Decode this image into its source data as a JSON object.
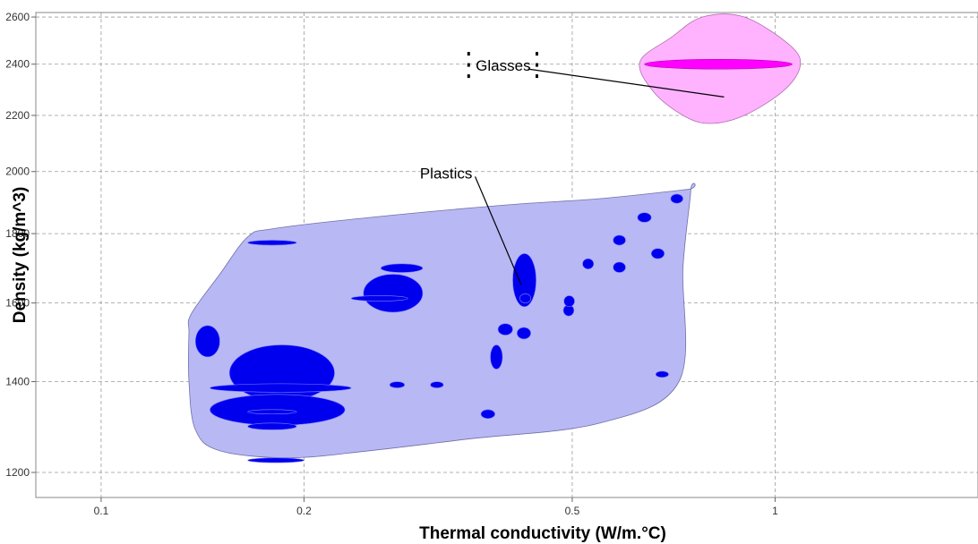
{
  "chart_data": {
    "type": "scatter",
    "xlabel": "Thermal conductivity (W/m.°C)",
    "ylabel": "Density (kg/m^3)",
    "x_scale": "log",
    "y_scale": "log",
    "xlim": [
      0.08,
      2.0
    ],
    "ylim": [
      1150,
      2620
    ],
    "x_ticks": [
      0.1,
      0.2,
      0.5,
      1
    ],
    "x_tick_labels": [
      "0.1",
      "0.2",
      "0.5",
      "1"
    ],
    "y_ticks": [
      1200,
      1400,
      1600,
      1800,
      2000,
      2200,
      2400,
      2600
    ],
    "y_tick_labels": [
      "1200",
      "1400",
      "1600",
      "1800",
      "2000",
      "2200",
      "2400",
      "2600"
    ],
    "grid": true,
    "colors": {
      "plastics_envelope": "#b8b8f5",
      "plastics_bubble": "#0000ee",
      "glasses_envelope": "#ffb3ff",
      "glasses_bubble": "#ff00ff"
    },
    "groups": [
      {
        "name": "Glasses",
        "label": "Glasses",
        "envelope": [
          [
            0.63,
            2410
          ],
          [
            0.7,
            2510
          ],
          [
            0.78,
            2600
          ],
          [
            0.9,
            2600
          ],
          [
            1.05,
            2480
          ],
          [
            1.09,
            2395
          ],
          [
            1.03,
            2295
          ],
          [
            0.9,
            2200
          ],
          [
            0.8,
            2170
          ],
          [
            0.73,
            2200
          ],
          [
            0.66,
            2290
          ]
        ],
        "materials": [
          {
            "k": [
              0.64,
              1.06
            ],
            "rho": [
              2380,
              2420
            ]
          }
        ]
      },
      {
        "name": "Plastics",
        "label": "Plastics",
        "envelope": [
          [
            0.136,
            1570
          ],
          [
            0.15,
            1680
          ],
          [
            0.165,
            1790
          ],
          [
            0.18,
            1815
          ],
          [
            0.25,
            1850
          ],
          [
            0.4,
            1890
          ],
          [
            0.55,
            1910
          ],
          [
            0.74,
            1940
          ],
          [
            0.75,
            1940
          ],
          [
            0.73,
            1700
          ],
          [
            0.72,
            1400
          ],
          [
            0.55,
            1305
          ],
          [
            0.35,
            1270
          ],
          [
            0.25,
            1245
          ],
          [
            0.19,
            1230
          ],
          [
            0.15,
            1245
          ],
          [
            0.138,
            1290
          ],
          [
            0.135,
            1400
          ],
          [
            0.135,
            1520
          ]
        ],
        "materials": [
          {
            "k": [
              0.165,
              0.195
            ],
            "rho": [
              1765,
              1780
            ]
          },
          {
            "k": [
              0.26,
              0.3
            ],
            "rho": [
              1685,
              1710
            ]
          },
          {
            "k": [
              0.245,
              0.3
            ],
            "rho": [
              1575,
              1680
            ]
          },
          {
            "k": [
              0.235,
              0.285
            ],
            "rho": [
              1605,
              1620
            ]
          },
          {
            "k": [
              0.138,
              0.15
            ],
            "rho": [
              1460,
              1540
            ]
          },
          {
            "k": [
              0.155,
              0.222
            ],
            "rho": [
              1355,
              1490
            ]
          },
          {
            "k": [
              0.145,
              0.235
            ],
            "rho": [
              1375,
              1395
            ]
          },
          {
            "k": [
              0.145,
              0.23
            ],
            "rho": [
              1300,
              1370
            ]
          },
          {
            "k": [
              0.165,
              0.195
            ],
            "rho": [
              1325,
              1335
            ]
          },
          {
            "k": [
              0.165,
              0.195
            ],
            "rho": [
              1290,
              1305
            ]
          },
          {
            "k": [
              0.165,
              0.2
            ],
            "rho": [
              1220,
              1230
            ]
          },
          {
            "k": [
              0.268,
              0.282
            ],
            "rho": [
              1385,
              1400
            ]
          },
          {
            "k": [
              0.308,
              0.322
            ],
            "rho": [
              1385,
              1400
            ]
          },
          {
            "k": [
              0.366,
              0.384
            ],
            "rho": [
              1315,
              1335
            ]
          },
          {
            "k": [
              0.378,
              0.394
            ],
            "rho": [
              1430,
              1490
            ]
          },
          {
            "k": [
              0.388,
              0.408
            ],
            "rho": [
              1515,
              1545
            ]
          },
          {
            "k": [
              0.408,
              0.442
            ],
            "rho": [
              1590,
              1740
            ]
          },
          {
            "k": [
              0.414,
              0.434
            ],
            "rho": [
              1505,
              1535
            ]
          },
          {
            "k": [
              0.418,
              0.434
            ],
            "rho": [
              1600,
              1625
            ]
          },
          {
            "k": [
              0.485,
              0.503
            ],
            "rho": [
              1565,
              1595
            ]
          },
          {
            "k": [
              0.486,
              0.504
            ],
            "rho": [
              1590,
              1620
            ]
          },
          {
            "k": [
              0.518,
              0.538
            ],
            "rho": [
              1695,
              1725
            ]
          },
          {
            "k": [
              0.575,
              0.6
            ],
            "rho": [
              1765,
              1795
            ]
          },
          {
            "k": [
              0.575,
              0.6
            ],
            "rho": [
              1685,
              1715
            ]
          },
          {
            "k": [
              0.625,
              0.655
            ],
            "rho": [
              1835,
              1865
            ]
          },
          {
            "k": [
              0.655,
              0.685
            ],
            "rho": [
              1725,
              1755
            ]
          },
          {
            "k": [
              0.665,
              0.695
            ],
            "rho": [
              1410,
              1425
            ]
          },
          {
            "k": [
              0.7,
              0.73
            ],
            "rho": [
              1895,
              1925
            ]
          }
        ]
      }
    ],
    "annotations": [
      {
        "text": "Glasses",
        "label_at": [
          0.395,
          2395
        ],
        "points_to": [
          0.84,
          2270
        ],
        "selected": true
      },
      {
        "text": "Plastics",
        "label_at": [
          0.325,
          1995
        ],
        "points_to": [
          0.42,
          1650
        ],
        "selected": false
      }
    ]
  }
}
